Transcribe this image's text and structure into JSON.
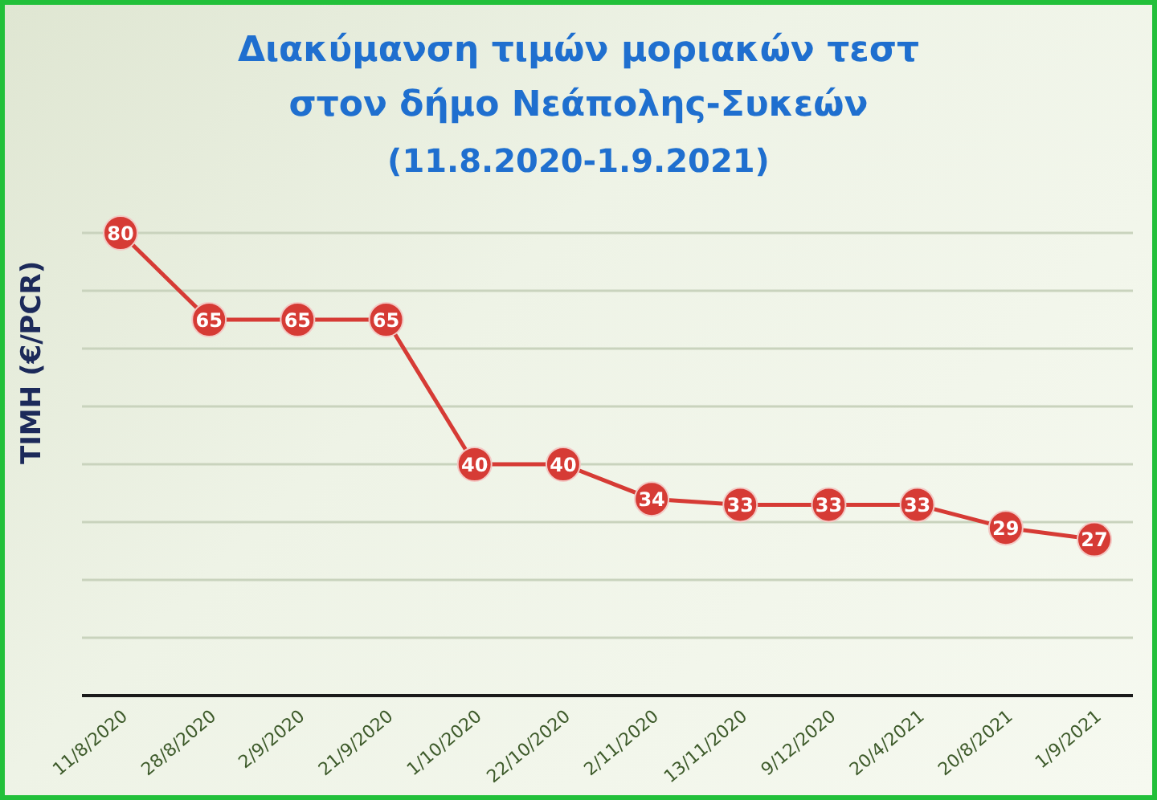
{
  "chart_data": {
    "type": "line",
    "title": "Διακύμανση τιμών μοριακών τεστ στον δήμο Νεάπολης-Συκεών",
    "subtitle": "(11.8.2020-1.9.2021)",
    "ylabel": "TIMH (€/PCR)",
    "categories": [
      "11/8/2020",
      "28/8/2020",
      "2/9/2020",
      "21/9/2020",
      "1/10/2020",
      "22/10/2020",
      "2/11/2020",
      "13/11/2020",
      "9/12/2020",
      "20/4/2021",
      "20/8/2021",
      "1/9/2021"
    ],
    "series": [
      {
        "color": "#d63b35",
        "values": [
          80,
          65,
          65,
          65,
          40,
          40,
          34,
          33,
          33,
          33,
          29,
          27
        ]
      }
    ],
    "tick_labels": "x",
    "grid": "y",
    "marker": "circle",
    "line_style": "solid",
    "data_labels": true
  }
}
